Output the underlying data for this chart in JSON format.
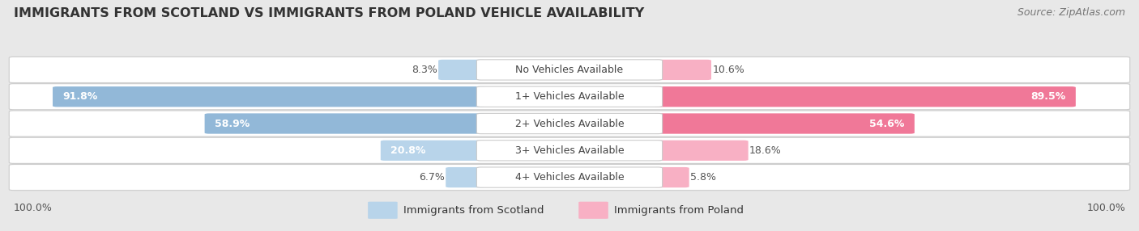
{
  "title": "IMMIGRANTS FROM SCOTLAND VS IMMIGRANTS FROM POLAND VEHICLE AVAILABILITY",
  "source": "Source: ZipAtlas.com",
  "categories": [
    "No Vehicles Available",
    "1+ Vehicles Available",
    "2+ Vehicles Available",
    "3+ Vehicles Available",
    "4+ Vehicles Available"
  ],
  "scotland_values": [
    8.3,
    91.8,
    58.9,
    20.8,
    6.7
  ],
  "poland_values": [
    10.6,
    89.5,
    54.6,
    18.6,
    5.8
  ],
  "scotland_color": "#92b8d8",
  "poland_color": "#f07898",
  "scotland_color_light": "#b8d4ea",
  "poland_color_light": "#f8b0c4",
  "scotland_label": "Immigrants from Scotland",
  "poland_label": "Immigrants from Poland",
  "background_color": "#e8e8e8",
  "max_value": 100.0,
  "title_fontsize": 11.5,
  "source_fontsize": 9,
  "value_fontsize": 9,
  "legend_fontsize": 9.5,
  "category_fontsize": 9
}
